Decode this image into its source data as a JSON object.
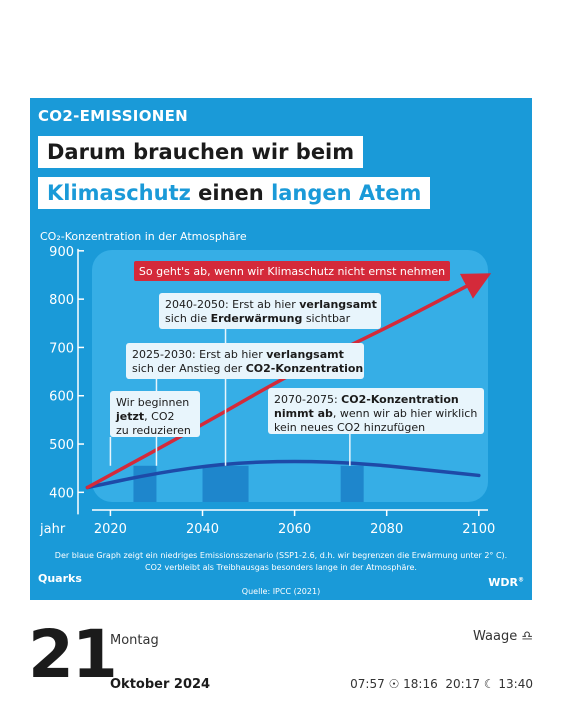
{
  "header": {
    "kicker": "CO2-EMISSIONEN",
    "headline_line1": "Darum brauchen wir beim",
    "headline_line2": [
      "Klimaschutz",
      " einen ",
      "langen Atem"
    ]
  },
  "chart_data": {
    "type": "line",
    "title": "CO₂-Konzentration in der Atmosphäre",
    "xlabel": "Jahr",
    "ylabel": "",
    "xlim": [
      2016,
      2102
    ],
    "ylim": [
      380,
      910
    ],
    "x_ticks": [
      2020,
      2040,
      2060,
      2080,
      2100
    ],
    "y_ticks": [
      400,
      500,
      600,
      700,
      800,
      900
    ],
    "series": [
      {
        "x": [
          2015,
          2030,
          2045,
          2060,
          2075,
          2090,
          2100
        ],
        "values": [
          410,
          440,
          460,
          465,
          460,
          445,
          435
        ]
      },
      {
        "x": [
          2015,
          2040,
          2060,
          2080,
          2100
        ],
        "values": [
          410,
          540,
          650,
          740,
          840
        ]
      }
    ],
    "highlighted_periods": [
      [
        2025,
        2030
      ],
      [
        2040,
        2050
      ],
      [
        2070,
        2075
      ]
    ],
    "annotations": [
      {
        "text": "So geht's ab, wenn wir Klimaschutz nicht ernst nehmen"
      },
      {
        "parts": [
          [
            "2040-2050: Erst ab hier ",
            false
          ],
          [
            "verlangsamt",
            true
          ],
          [
            "sich die ",
            false
          ],
          [
            "Erderwärmung",
            true
          ],
          [
            " sichtbar",
            false
          ]
        ]
      },
      {
        "parts": [
          [
            "2025-2030: Erst ab hier ",
            false
          ],
          [
            "verlangsamt",
            true
          ],
          [
            "sich der Anstieg der ",
            false
          ],
          [
            "CO2-Konzentration",
            true
          ]
        ]
      },
      {
        "parts": [
          [
            "Wir beginnen",
            false
          ],
          [
            "jetzt",
            true
          ],
          [
            ", CO2",
            false
          ],
          [
            "zu reduzieren",
            false
          ]
        ]
      },
      {
        "parts": [
          [
            "2070-2075: ",
            false
          ],
          [
            "CO2-Konzentration",
            true
          ],
          [
            "nimmt ab",
            true
          ],
          [
            ", wenn wir ab hier wirklich",
            false
          ],
          [
            "kein neues CO2 hinzufügen",
            false
          ]
        ]
      }
    ],
    "colors": {
      "blue_series": "#1e4aa8",
      "red_series": "#d42a3a",
      "background": "#1a9ad8"
    }
  },
  "footnote": {
    "line1": "Der blaue Graph zeigt ein niedriges Emissionsszenario (SSP1-2.6, d.h. wir begrenzen die Erwärmung unter 2° C).",
    "line2": "CO2 verbleibt als Treibhausgas besonders lange in der Atmosphäre.",
    "source": "Quelle: IPCC (2021)",
    "logo_left": "Quarks",
    "logo_right": "WDR"
  },
  "calendar": {
    "day": "21",
    "weekday": "Montag",
    "month": "Oktober 2024",
    "zodiac": "Waage",
    "zodiac_symbol": "♎",
    "sunrise": "07:57",
    "sunset": "18:16",
    "moonrise": "20:17",
    "moonset": "13:40"
  }
}
